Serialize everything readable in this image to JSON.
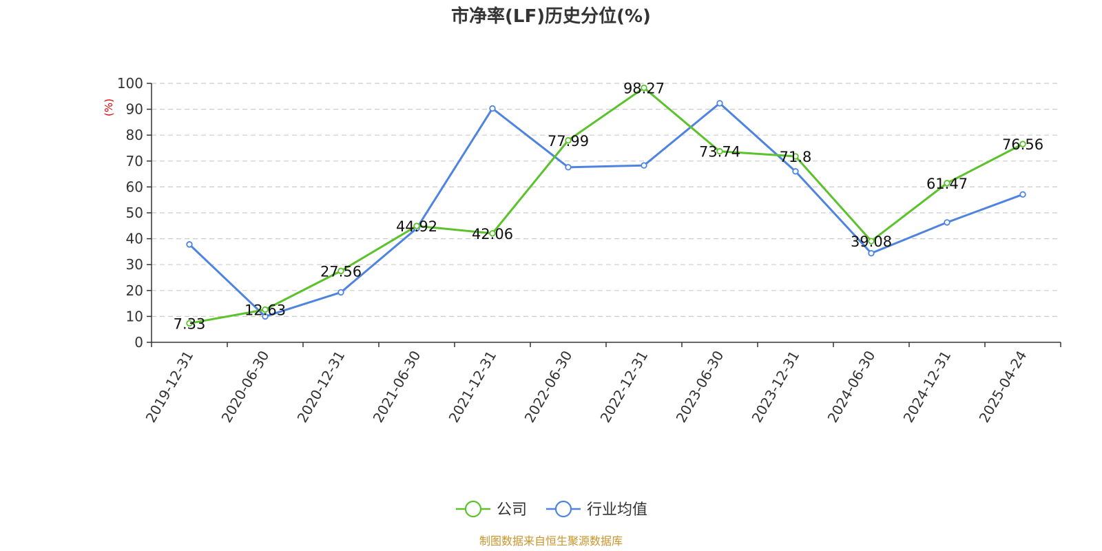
{
  "chart_data": {
    "type": "line",
    "title": "市净率(LF)历史分位(%)",
    "ylabel": "(%)",
    "ylim": [
      0,
      100
    ],
    "yticks": [
      0,
      10,
      20,
      30,
      40,
      50,
      60,
      70,
      80,
      90,
      100
    ],
    "categories": [
      "2019-12-31",
      "2020-06-30",
      "2020-12-31",
      "2021-06-30",
      "2021-12-31",
      "2022-06-30",
      "2022-12-31",
      "2023-06-30",
      "2023-12-31",
      "2024-06-30",
      "2024-12-31",
      "2025-04-24"
    ],
    "grid": true,
    "legend_position": "bottom",
    "series": [
      {
        "name": "公司",
        "color": "#5cc22b",
        "values": [
          7.33,
          12.63,
          27.56,
          44.92,
          42.06,
          77.99,
          98.27,
          73.74,
          71.8,
          39.08,
          61.47,
          76.56
        ],
        "labels": [
          "7.33",
          "12.63",
          "27.56",
          "44.92",
          "42.06",
          "77.99",
          "98.27",
          "73.74",
          "71.8",
          "39.08",
          "61.47",
          "76.56"
        ]
      },
      {
        "name": "行业均值",
        "color": "#4e84e0",
        "values": [
          37.8,
          10.0,
          19.3,
          44.0,
          90.3,
          67.6,
          68.3,
          92.3,
          66.0,
          34.4,
          46.3,
          57.1
        ]
      }
    ]
  },
  "source_text": "制图数据来自恒生聚源数据库",
  "colors": {
    "source": "#c8952b",
    "ylabel": "#e00000",
    "axis": "#333333",
    "grid": "#cccccc"
  }
}
